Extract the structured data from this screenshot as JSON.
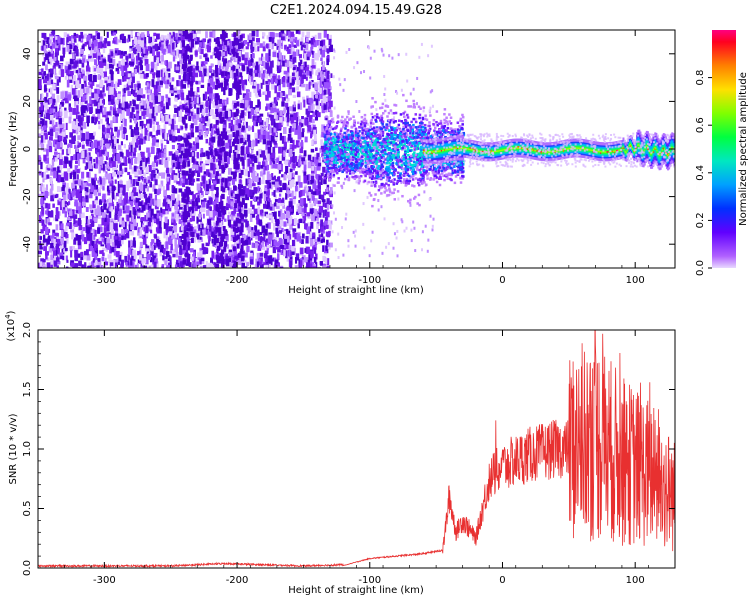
{
  "title": "C2E1.2024.094.15.49.G28",
  "chart_data": [
    {
      "type": "heatmap",
      "xlabel": "Height of straight line (km)",
      "ylabel": "Frequency (Hz)",
      "xlim": [
        -350,
        130
      ],
      "ylim": [
        -50,
        50
      ],
      "xticks": [
        "-300",
        "-200",
        "-100",
        "0",
        "100"
      ],
      "yticks": [
        "-40",
        "-20",
        "0",
        "20",
        "40"
      ],
      "colorbar": {
        "label": "Normalized spectral amplitude",
        "range": [
          0,
          1
        ],
        "ticks": [
          "0.0",
          "0.2",
          "0.4",
          "0.6",
          "0.8"
        ],
        "colormap": "rainbow (purple to red)"
      },
      "description_values": {
        "noise_region_x": [
          -350,
          -130
        ],
        "signal_onset_x": -130,
        "signal_center_freq": 0
      }
    },
    {
      "type": "line",
      "xlabel": "Height of straight line (km)",
      "ylabel": "SNR (10 * v/v)",
      "multiplier": "(x10",
      "multiplier_exp": "4",
      "multiplier_close": ")",
      "xlim": [
        -350,
        130
      ],
      "ylim": [
        0,
        2.0
      ],
      "xticks": [
        "-300",
        "-200",
        "-100",
        "0",
        "100"
      ],
      "yticks": [
        "0.0",
        "0.5",
        "1.0",
        "1.5",
        "2.0"
      ],
      "series": [
        {
          "color": "#e83030",
          "x": [
            -350,
            -300,
            -250,
            -210,
            -150,
            -120,
            -100,
            -80,
            -60,
            -45,
            -40,
            -35,
            -30,
            -20,
            -10,
            0,
            20,
            40,
            50,
            60,
            70,
            80,
            90,
            100,
            110,
            120,
            130
          ],
          "y": [
            0.01,
            0.01,
            0.01,
            0.03,
            0.01,
            0.02,
            0.08,
            0.1,
            0.12,
            0.15,
            0.6,
            0.3,
            0.4,
            0.25,
            0.75,
            0.85,
            0.95,
            1.0,
            1.0,
            1.05,
            1.1,
            1.0,
            0.9,
            0.85,
            0.8,
            0.7,
            0.6
          ]
        }
      ]
    }
  ]
}
